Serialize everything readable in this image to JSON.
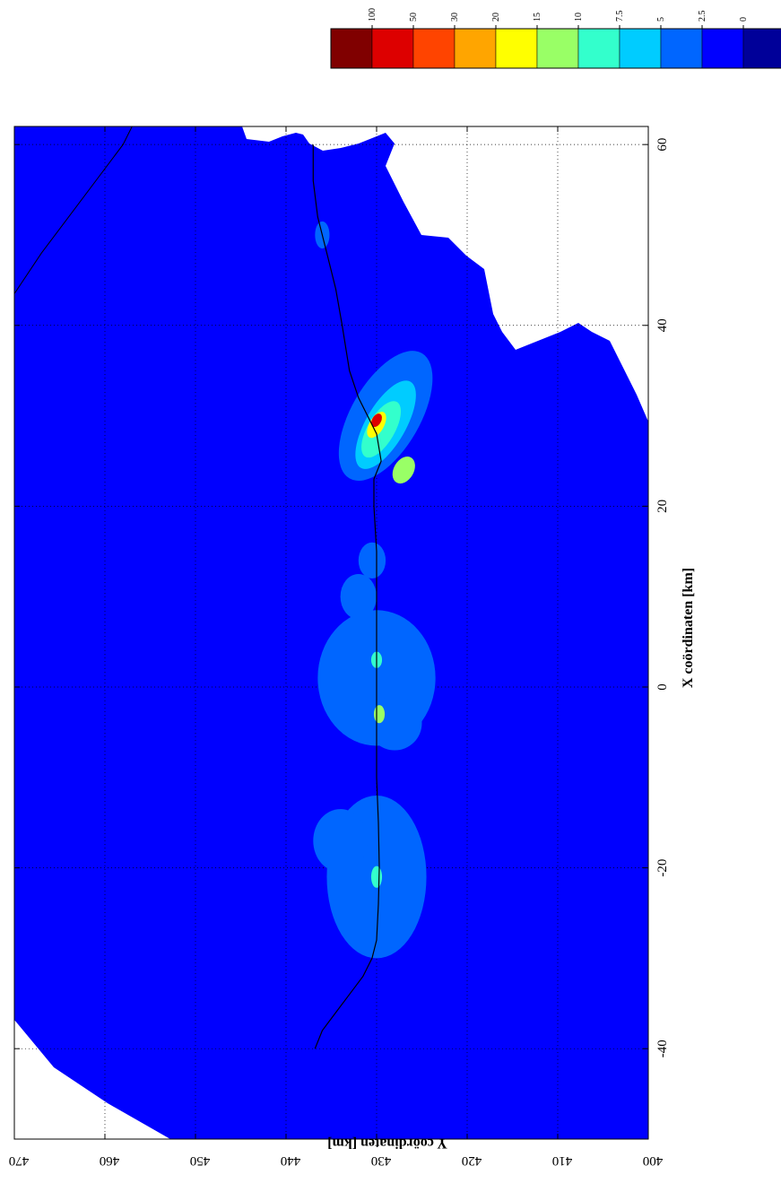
{
  "chart_data": {
    "type": "heatmap",
    "orientation": "rotated-90",
    "title": "",
    "xlabel": "X coördinaten [km]",
    "ylabel": "Y coördinaten [km]",
    "xlim": [
      -50,
      62
    ],
    "ylim": [
      400,
      470
    ],
    "x_ticks": [
      -40,
      -20,
      0,
      20,
      40,
      60
    ],
    "y_ticks": [
      400,
      410,
      420,
      430,
      440,
      450,
      460,
      470
    ],
    "grid": true,
    "background_color": "#0000FF",
    "land_color": "#FFFFFF",
    "colorbar": {
      "placement": "top-right",
      "levels": [
        "100",
        "50",
        "30",
        "20",
        "15",
        "10",
        "7.5",
        "5",
        "2.5",
        "0"
      ],
      "colors": [
        "#800000",
        "#DD0000",
        "#FF4400",
        "#FFA500",
        "#FFFF00",
        "#99FF66",
        "#33FFCC",
        "#00CCFF",
        "#0066FF",
        "#0000FF",
        "#000099"
      ]
    },
    "route": {
      "name": "",
      "points": [
        [
          -40,
          436.8
        ],
        [
          -38,
          436
        ],
        [
          -36,
          434.5
        ],
        [
          -34,
          433
        ],
        [
          -32,
          431.5
        ],
        [
          -30,
          430.5
        ],
        [
          -28,
          430
        ],
        [
          -24,
          429.8
        ],
        [
          -20,
          429.7
        ],
        [
          -15,
          429.8
        ],
        [
          -10,
          430
        ],
        [
          -5,
          430
        ],
        [
          0,
          430
        ],
        [
          5,
          430
        ],
        [
          10,
          430
        ],
        [
          15,
          430
        ],
        [
          20,
          430.3
        ],
        [
          23,
          430.3
        ],
        [
          25,
          429.5
        ],
        [
          28,
          430
        ],
        [
          32,
          432
        ],
        [
          35,
          433
        ],
        [
          40,
          433.8
        ],
        [
          44,
          434.5
        ],
        [
          48,
          435.5
        ],
        [
          52,
          436.5
        ],
        [
          56,
          437
        ],
        [
          60,
          437
        ]
      ]
    },
    "coastline": {
      "points": [
        [
          43.5,
          470
        ],
        [
          48,
          467
        ],
        [
          52,
          464
        ],
        [
          56,
          461
        ],
        [
          60,
          458
        ],
        [
          62,
          457
        ]
      ]
    },
    "plumes": [
      {
        "x": -21,
        "y": 430,
        "rx": 9,
        "ry": 5.5,
        "level": "2.5"
      },
      {
        "x": -17,
        "y": 434,
        "rx": 3.5,
        "ry": 3,
        "level": "2.5"
      },
      {
        "x": -26,
        "y": 429,
        "rx": 3,
        "ry": 2,
        "level": "2.5"
      },
      {
        "x": 1,
        "y": 430,
        "rx": 7.5,
        "ry": 6.5,
        "level": "2.5"
      },
      {
        "x": -4,
        "y": 428,
        "rx": 3,
        "ry": 3,
        "level": "2.5"
      },
      {
        "x": 10,
        "y": 432,
        "rx": 2.5,
        "ry": 2,
        "level": "2.5"
      },
      {
        "x": 14,
        "y": 430.5,
        "rx": 2,
        "ry": 1.5,
        "level": "2.5"
      },
      {
        "x": 30,
        "y": 429,
        "rx": 8,
        "ry": 3.8,
        "rotate": 30,
        "level": "2.5"
      },
      {
        "x": 29,
        "y": 429,
        "rx": 5.5,
        "ry": 2.2,
        "rotate": 30,
        "level": "5"
      },
      {
        "x": 28.5,
        "y": 429.5,
        "rx": 3.5,
        "ry": 1.5,
        "rotate": 30,
        "level": "7.5"
      },
      {
        "x": 24,
        "y": 427,
        "rx": 1.6,
        "ry": 1.1,
        "rotate": 30,
        "level": "10"
      },
      {
        "x": 29,
        "y": 430,
        "rx": 1.6,
        "ry": 0.8,
        "rotate": 30,
        "level": "15"
      },
      {
        "x": 29.5,
        "y": 430,
        "rx": 0.8,
        "ry": 0.5,
        "rotate": 30,
        "level": "50"
      },
      {
        "x": -21,
        "y": 430,
        "rx": 1.2,
        "ry": 0.6,
        "level": "7.5"
      },
      {
        "x": -3,
        "y": 429.7,
        "rx": 1,
        "ry": 0.6,
        "level": "10"
      },
      {
        "x": 3,
        "y": 430,
        "rx": 0.9,
        "ry": 0.6,
        "level": "7.5"
      },
      {
        "x": 50,
        "y": 436,
        "rx": 1.5,
        "ry": 0.8,
        "level": "2.5"
      }
    ]
  }
}
